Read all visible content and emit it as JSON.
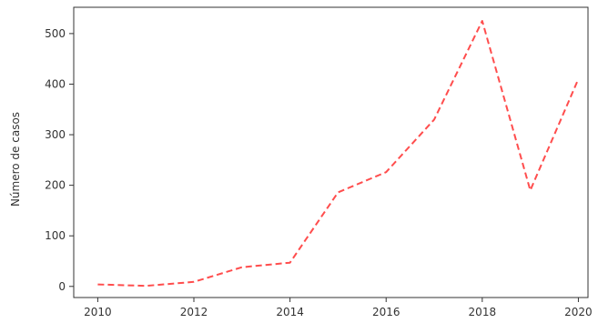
{
  "chart_data": {
    "type": "line",
    "title": "",
    "xlabel": "",
    "ylabel": "Número de casos",
    "xlim": [
      2009.5,
      2020.2
    ],
    "ylim": [
      -22,
      552
    ],
    "x_ticks": [
      2010,
      2012,
      2014,
      2016,
      2018,
      2020
    ],
    "y_ticks": [
      0,
      100,
      200,
      300,
      400,
      500
    ],
    "grid": false,
    "legend": "none",
    "series": [
      {
        "x": [
          2010,
          2011,
          2012,
          2013,
          2014,
          2015,
          2016,
          2017,
          2018,
          2019,
          2020
        ],
        "values": [
          4,
          1,
          9,
          38,
          47,
          186,
          226,
          330,
          525,
          190,
          410
        ],
        "color": "#ff4d4d",
        "line_style": "dashed"
      }
    ]
  }
}
